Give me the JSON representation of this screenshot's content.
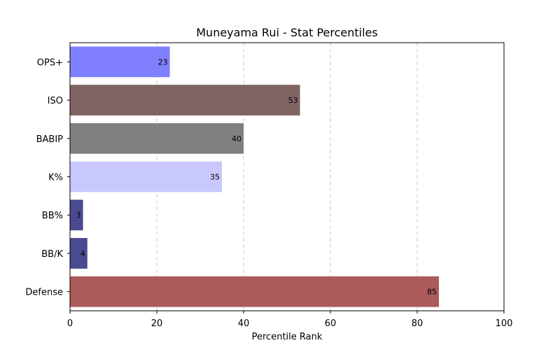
{
  "chart_data": {
    "type": "bar",
    "orientation": "horizontal",
    "title": "Muneyama Rui - Stat Percentiles",
    "xlabel": "Percentile Rank",
    "ylabel": "",
    "xlim": [
      0,
      100
    ],
    "xticks": [
      0,
      20,
      40,
      60,
      80,
      100
    ],
    "grid": "x-dashed",
    "categories": [
      "OPS+",
      "ISO",
      "BABIP",
      "K%",
      "BB%",
      "BB/K",
      "Defense"
    ],
    "values": [
      23,
      53,
      40,
      35,
      3,
      4,
      85
    ],
    "colors": [
      "#8080ff",
      "#806464",
      "#808080",
      "#c8c8ff",
      "#4a4a90",
      "#4a4a90",
      "#ac5a5a"
    ]
  }
}
